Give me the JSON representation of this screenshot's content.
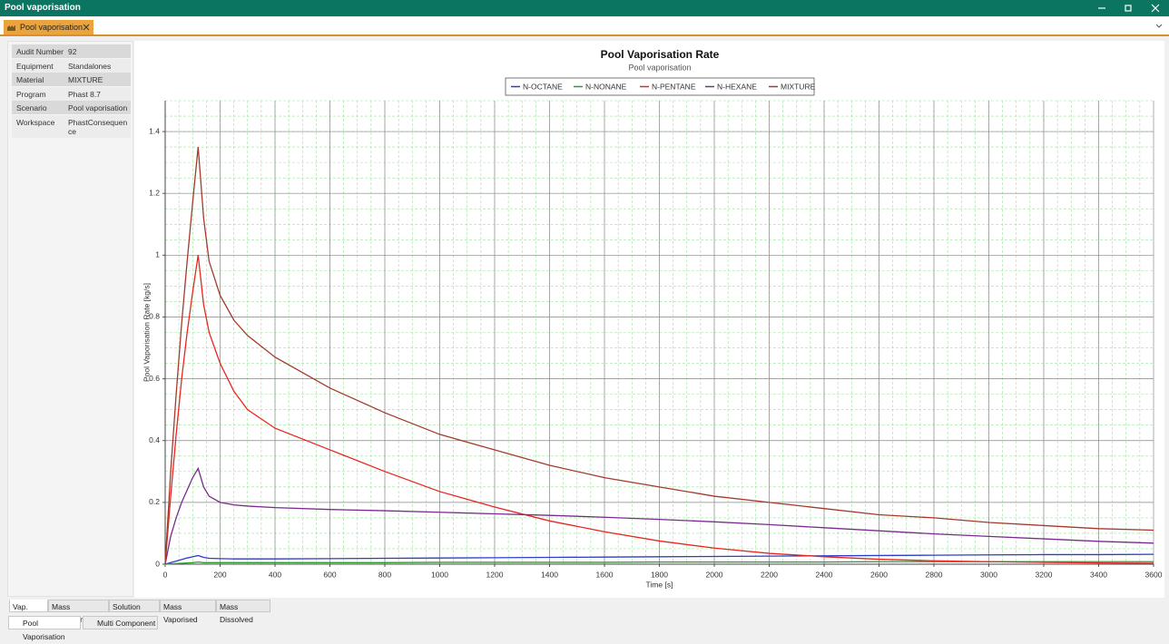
{
  "window": {
    "title": "Pool vaporisation"
  },
  "tab": {
    "label": "Pool vaporisation"
  },
  "info_table": {
    "rows": [
      [
        "Audit Number",
        "92"
      ],
      [
        "Equipment",
        "Standalones"
      ],
      [
        "Material",
        "MIXTURE"
      ],
      [
        "Program",
        "Phast 8.7"
      ],
      [
        "Scenario",
        "Pool vaporisation"
      ],
      [
        "Workspace",
        "PhastConsequence"
      ]
    ]
  },
  "chart_data": {
    "type": "line",
    "title": "Pool Vaporisation Rate",
    "subtitle": "Pool vaporisation",
    "x_label": "Time [s]",
    "y_label": "Pool Vaporisation Rate [kg/s]",
    "x": [
      0,
      20,
      40,
      60,
      80,
      100,
      120,
      140,
      160,
      200,
      250,
      300,
      400,
      600,
      800,
      1000,
      1200,
      1400,
      1600,
      1800,
      2000,
      2200,
      2400,
      2600,
      2800,
      3000,
      3200,
      3400,
      3600
    ],
    "series": [
      {
        "name": "N-OCTANE",
        "color": "#2b3fc6",
        "values": [
          0,
          0.005,
          0.01,
          0.015,
          0.02,
          0.024,
          0.028,
          0.022,
          0.019,
          0.018,
          0.017,
          0.017,
          0.017,
          0.018,
          0.019,
          0.02,
          0.021,
          0.022,
          0.023,
          0.024,
          0.025,
          0.026,
          0.027,
          0.028,
          0.029,
          0.03,
          0.031,
          0.031,
          0.032
        ]
      },
      {
        "name": "N-NONANE",
        "color": "#2e9a2e",
        "values": [
          0,
          0.001,
          0.002,
          0.003,
          0.004,
          0.005,
          0.007,
          0.005,
          0.005,
          0.005,
          0.005,
          0.005,
          0.005,
          0.005,
          0.005,
          0.006,
          0.006,
          0.006,
          0.006,
          0.007,
          0.007,
          0.007,
          0.007,
          0.008,
          0.008,
          0.008,
          0.008,
          0.008,
          0.008
        ]
      },
      {
        "name": "N-PENTANE",
        "color": "#e8261f",
        "values": [
          0,
          0.22,
          0.42,
          0.6,
          0.75,
          0.88,
          1.0,
          0.84,
          0.75,
          0.65,
          0.56,
          0.5,
          0.44,
          0.37,
          0.3,
          0.235,
          0.185,
          0.14,
          0.105,
          0.075,
          0.052,
          0.035,
          0.024,
          0.016,
          0.011,
          0.008,
          0.006,
          0.004,
          0.003
        ]
      },
      {
        "name": "N-HEXANE",
        "color": "#7a2b8e",
        "values": [
          0,
          0.09,
          0.15,
          0.2,
          0.24,
          0.28,
          0.31,
          0.25,
          0.22,
          0.2,
          0.192,
          0.188,
          0.183,
          0.177,
          0.173,
          0.168,
          0.163,
          0.158,
          0.152,
          0.145,
          0.137,
          0.128,
          0.118,
          0.108,
          0.098,
          0.09,
          0.082,
          0.074,
          0.068
        ]
      },
      {
        "name": "MIXTURE",
        "color": "#a33a2c",
        "values": [
          0,
          0.3,
          0.55,
          0.78,
          0.98,
          1.17,
          1.35,
          1.12,
          0.98,
          0.87,
          0.79,
          0.74,
          0.67,
          0.57,
          0.49,
          0.42,
          0.37,
          0.32,
          0.28,
          0.25,
          0.22,
          0.2,
          0.18,
          0.16,
          0.15,
          0.135,
          0.125,
          0.115,
          0.11
        ]
      }
    ],
    "xlim": [
      0,
      3600
    ],
    "xticks": [
      0,
      200,
      400,
      600,
      800,
      1000,
      1200,
      1400,
      1600,
      1800,
      2000,
      2200,
      2400,
      2600,
      2800,
      3000,
      3200,
      3400,
      3600
    ],
    "ylim": [
      0,
      1.5
    ],
    "yticks": [
      0,
      0.2,
      0.4,
      0.6,
      0.8,
      1,
      1.2,
      1.4
    ],
    "grid": true,
    "minor_grid": true,
    "legend": "top"
  },
  "chart_tabs": [
    "Vap. Rate",
    "Mass Remaining",
    "Solution Rate",
    "Mass Vaporised",
    "Mass Dissolved"
  ],
  "bottom_tabs": [
    "Pool Vaporisation",
    "Multi Component"
  ]
}
